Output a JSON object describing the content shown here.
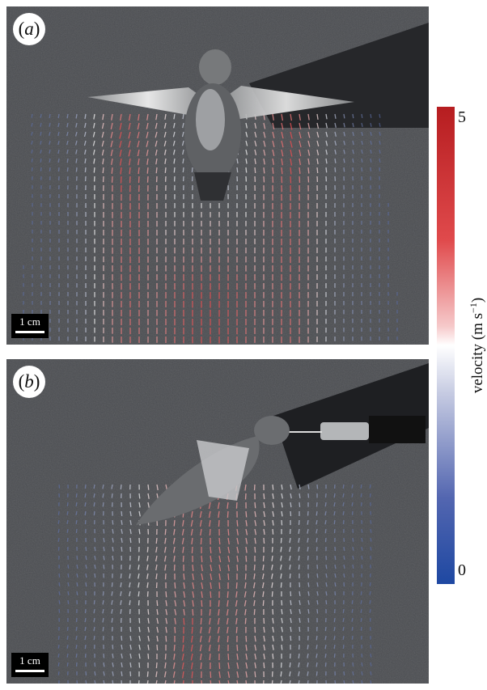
{
  "panels": [
    {
      "label": "a",
      "scale_bar": "1 cm"
    },
    {
      "label": "b",
      "scale_bar": "1 cm"
    }
  ],
  "colorbar": {
    "max_label": "5",
    "min_label": "0",
    "label": "velocity (m s",
    "label_exponent": "−1",
    "label_close": ")",
    "colors": {
      "high": "#b61d20",
      "mid": "#ffffff",
      "low": "#1e48a2"
    }
  }
}
